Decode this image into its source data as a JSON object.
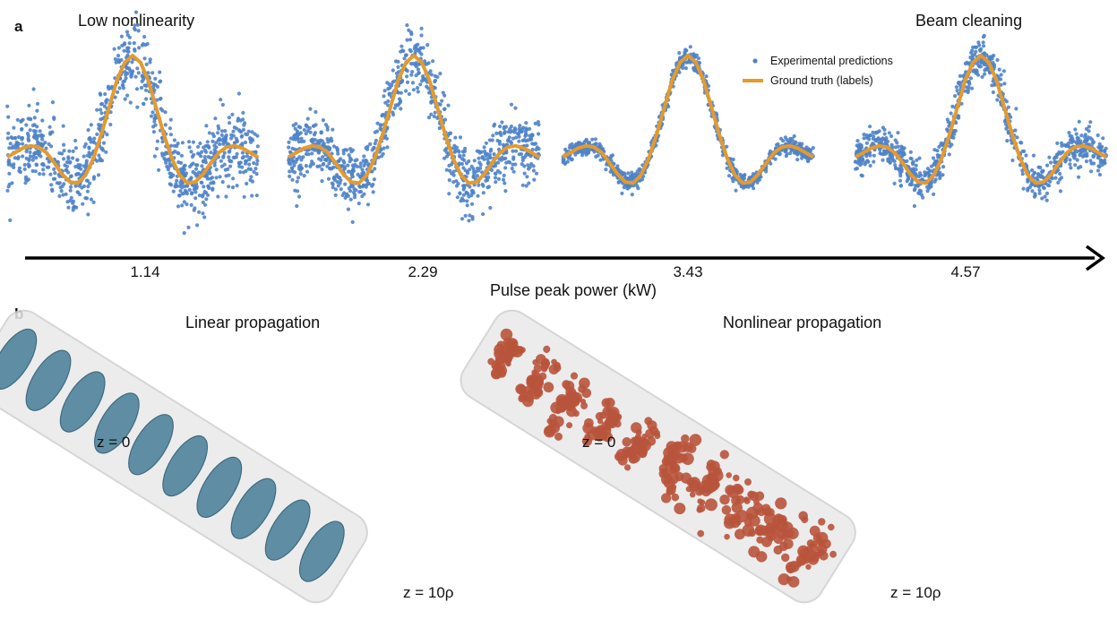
{
  "panel_a": {
    "letter": "a",
    "title_left": "Low nonlinearity",
    "title_right": "Beam cleaning",
    "legend": {
      "predictions": "Experimental predictions",
      "truth": "Ground truth (labels)"
    },
    "axis_title": "Pulse peak power (kW)",
    "ticks": [
      "1.14",
      "2.29",
      "3.43",
      "4.57"
    ]
  },
  "panel_b": {
    "letter": "b",
    "left_title": "Linear propagation",
    "right_title": "Nonlinear propagation",
    "z_start": "z = 0",
    "z_end": "z = 10ρ"
  },
  "colors": {
    "points": "#4f83c9",
    "truth": "#e59a2b",
    "linear": "#5f8ea4",
    "nonlinear": "#b9543c"
  },
  "chart_data": {
    "type": "scatter",
    "xlabel": "Pulse peak power (kW)",
    "categories": [
      "1.14",
      "2.29",
      "3.43",
      "4.57"
    ],
    "series": [
      {
        "name": "Experimental predictions",
        "style": "points",
        "noise_level": [
          0.3,
          0.26,
          0.07,
          0.16
        ]
      },
      {
        "name": "Ground truth (labels)",
        "style": "line"
      }
    ],
    "truth_profile": [
      0.1,
      0.14,
      0.18,
      0.2,
      0.19,
      0.14,
      0.05,
      -0.05,
      -0.12,
      -0.13,
      -0.06,
      0.09,
      0.3,
      0.54,
      0.78,
      0.94,
      1.0,
      0.94,
      0.78,
      0.54,
      0.3,
      0.09,
      -0.06,
      -0.13,
      -0.12,
      -0.05,
      0.05,
      0.14,
      0.19,
      0.2,
      0.18,
      0.14,
      0.1
    ],
    "y_range": [
      -0.45,
      1.35
    ]
  }
}
